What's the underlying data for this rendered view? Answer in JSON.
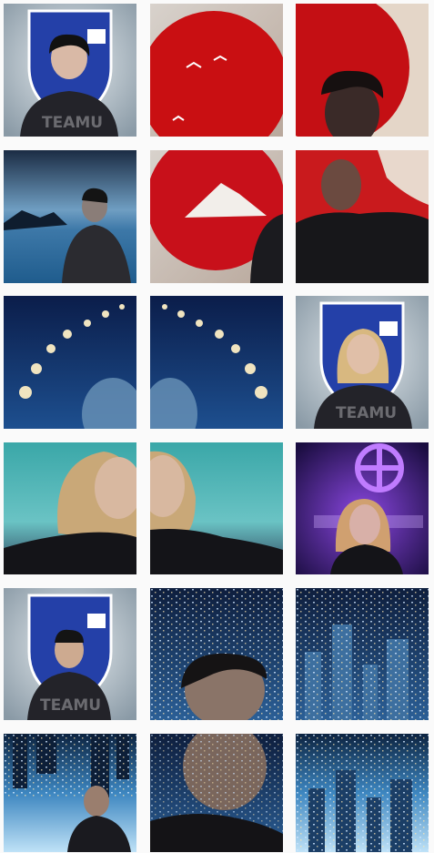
{
  "photo_texts": [
    "TEAMU",
    "TEAMU",
    "TEAMU"
  ]
}
